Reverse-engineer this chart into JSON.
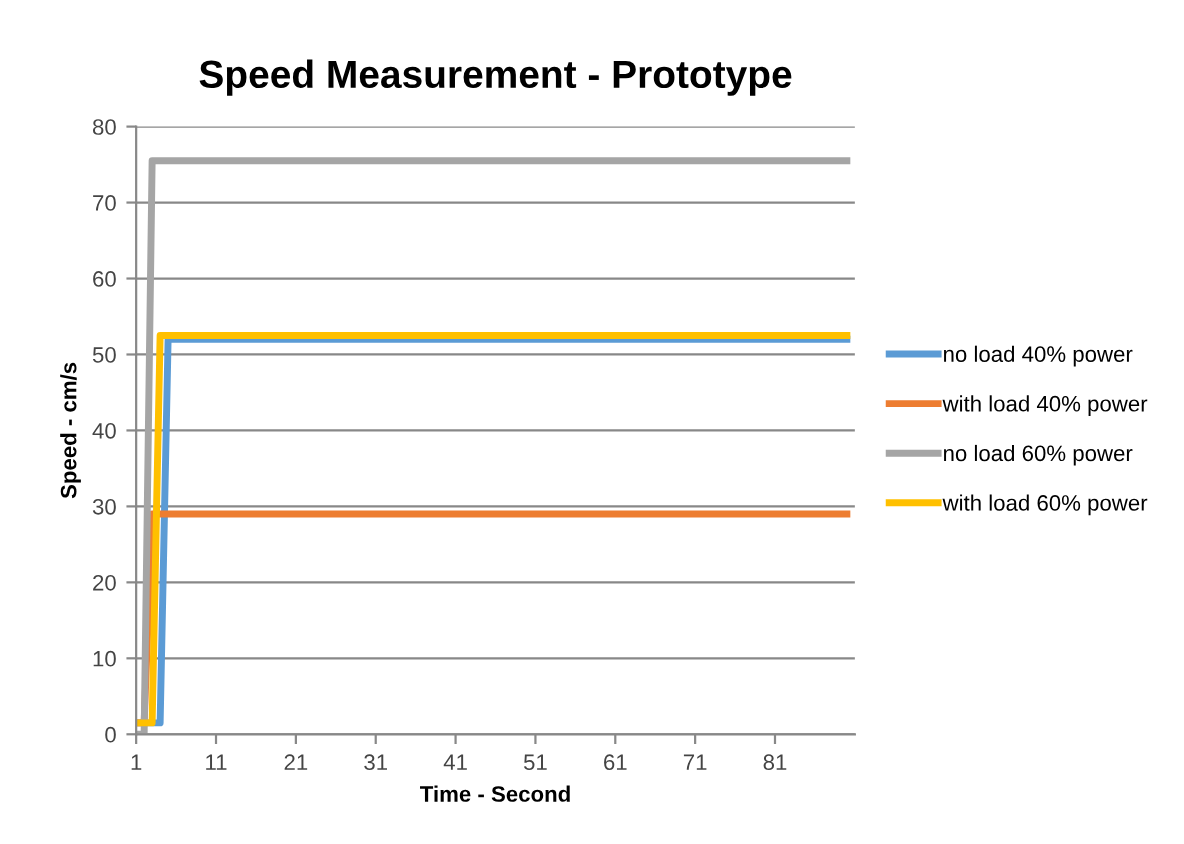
{
  "chart_data": {
    "type": "line",
    "title": "Speed Measurement - Prototype",
    "xlabel": "Time - Second",
    "ylabel": "Speed - cm/s",
    "xlim": [
      1,
      91
    ],
    "xticks": [
      1,
      11,
      21,
      31,
      41,
      51,
      61,
      71,
      81
    ],
    "ylim": [
      0,
      80
    ],
    "yticks": [
      0,
      10,
      20,
      30,
      40,
      50,
      60,
      70,
      80
    ],
    "grid": "y",
    "legend": "right",
    "marker": "none",
    "line_style": "solid",
    "series": [
      {
        "name": "no load 40% power",
        "color": "#5b9bd5",
        "x": [
          1,
          4,
          5,
          90
        ],
        "values": [
          1.5,
          1.5,
          52,
          52
        ]
      },
      {
        "name": "with load 40% power",
        "color": "#ed7d31",
        "x": [
          1,
          2,
          3,
          90
        ],
        "values": [
          1.5,
          1.5,
          29,
          29
        ]
      },
      {
        "name": "no load 60% power",
        "color": "#a5a5a5",
        "x": [
          1,
          2,
          3,
          90
        ],
        "values": [
          0,
          0,
          75.5,
          75.5
        ]
      },
      {
        "name": "with load 60% power",
        "color": "#ffc000",
        "x": [
          1,
          3,
          4,
          90
        ],
        "values": [
          1.5,
          1.5,
          52.5,
          52.5
        ]
      }
    ]
  }
}
